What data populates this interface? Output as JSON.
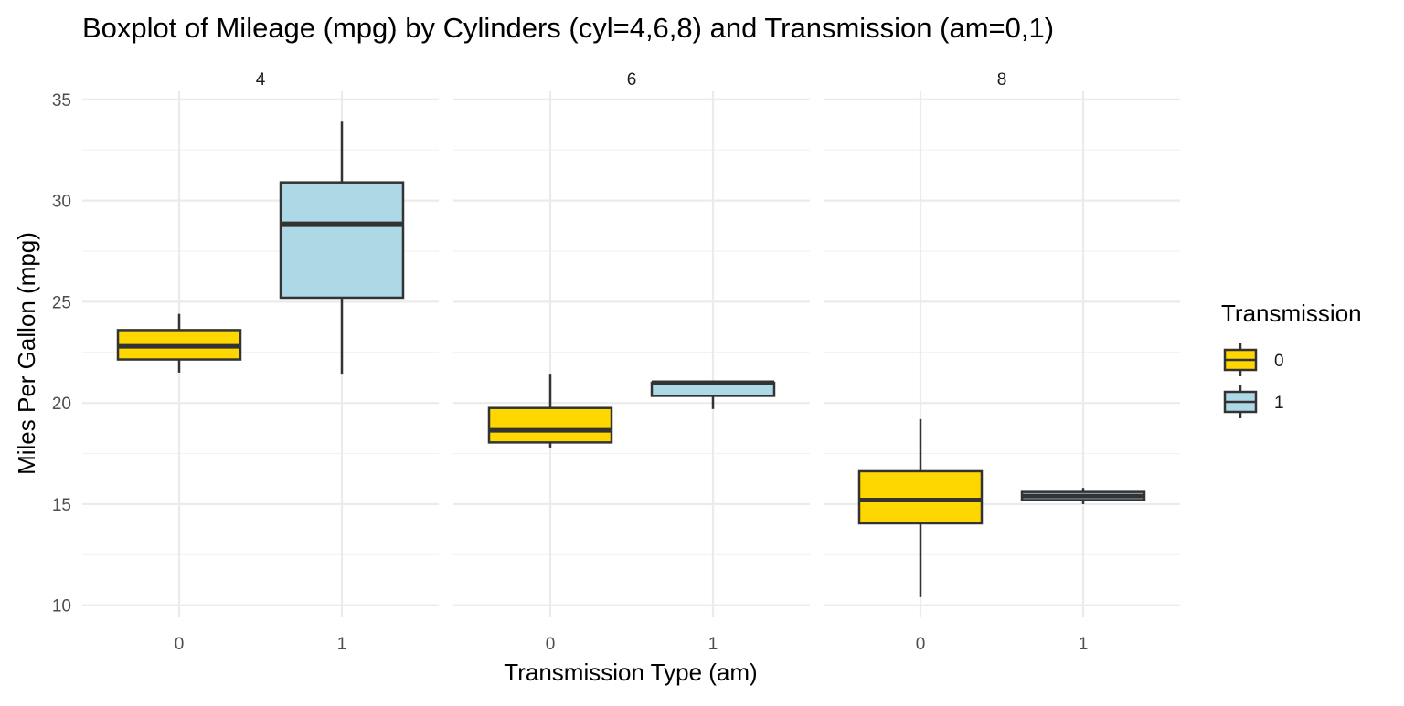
{
  "chart_data": {
    "type": "boxplot",
    "title": "Boxplot of Mileage (mpg) by Cylinders (cyl=4,6,8) and Transmission (am=0,1)",
    "xlabel": "Transmission Type (am)",
    "ylabel": "Miles Per Gallon (mpg)",
    "ylim": [
      9.4,
      35.4
    ],
    "yticks": [
      10,
      15,
      20,
      25,
      30,
      35
    ],
    "grid": true,
    "facets": [
      "4",
      "6",
      "8"
    ],
    "categories": [
      "0",
      "1"
    ],
    "legend": {
      "title": "Transmission",
      "position": "right",
      "entries": [
        {
          "label": "0",
          "color": "#FFD700"
        },
        {
          "label": "1",
          "color": "#ADD8E6"
        }
      ]
    },
    "boxes": [
      {
        "facet": "4",
        "am": "0",
        "min": 21.5,
        "q1": 22.15,
        "median": 22.8,
        "q3": 23.6,
        "max": 24.4
      },
      {
        "facet": "4",
        "am": "1",
        "min": 21.4,
        "q1": 25.2,
        "median": 28.85,
        "q3": 30.9,
        "max": 33.9
      },
      {
        "facet": "6",
        "am": "0",
        "min": 17.8,
        "q1": 18.05,
        "median": 18.65,
        "q3": 19.75,
        "max": 21.4
      },
      {
        "facet": "6",
        "am": "1",
        "min": 19.7,
        "q1": 20.35,
        "median": 21.0,
        "q3": 21.0,
        "max": 21.0
      },
      {
        "facet": "8",
        "am": "0",
        "min": 10.4,
        "q1": 14.05,
        "median": 15.2,
        "q3": 16.625,
        "max": 19.2
      },
      {
        "facet": "8",
        "am": "1",
        "min": 15.0,
        "q1": 15.2,
        "median": 15.4,
        "q3": 15.6,
        "max": 15.8
      }
    ]
  }
}
